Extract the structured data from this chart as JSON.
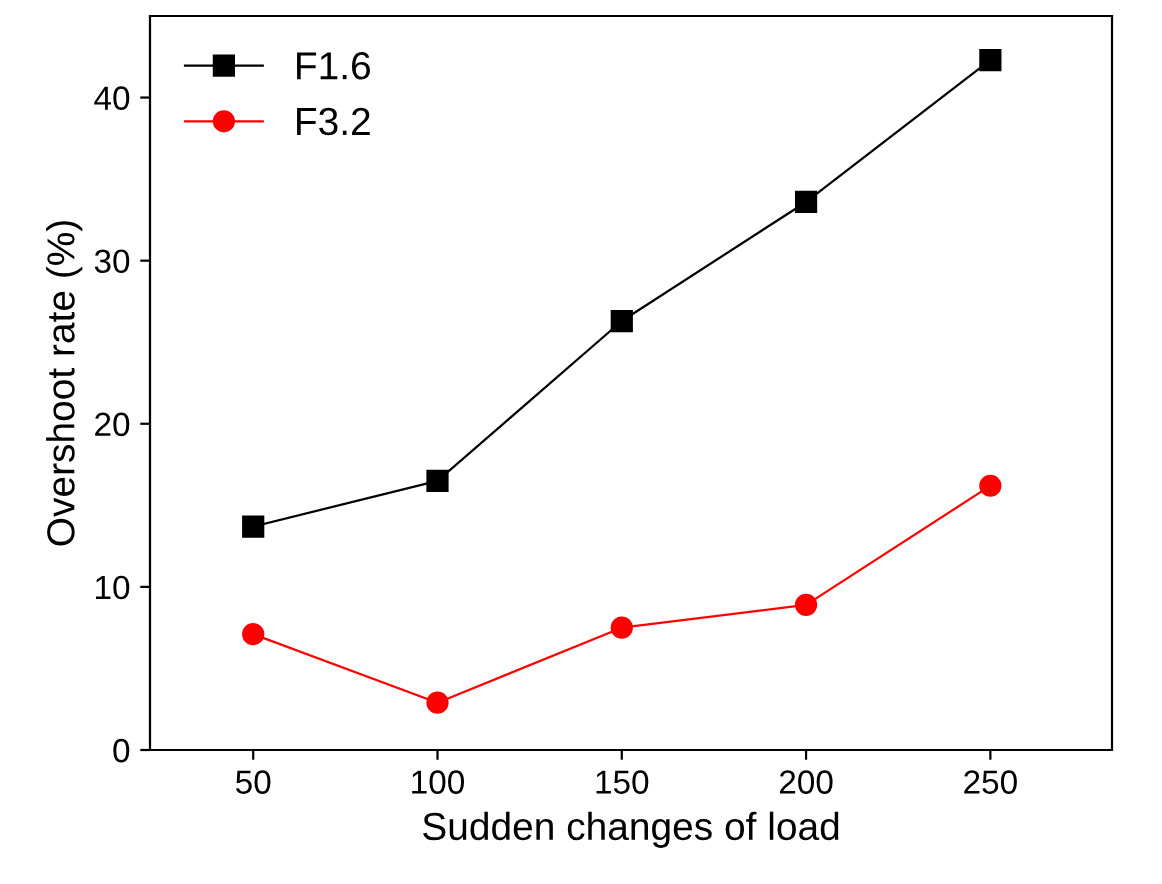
{
  "chart_data": {
    "type": "line",
    "xlabel": "Sudden changes of load",
    "ylabel": "Overshoot rate (%)",
    "x": [
      50,
      100,
      150,
      200,
      250
    ],
    "xlim": [
      22,
      283
    ],
    "xticks": [
      50,
      100,
      150,
      200,
      250
    ],
    "ylim": [
      0,
      45
    ],
    "yticks": [
      0,
      10,
      20,
      30,
      40
    ],
    "series": [
      {
        "name": "F1.6",
        "color": "#000000",
        "marker": "square",
        "values": [
          13.7,
          16.5,
          26.3,
          33.6,
          42.3
        ]
      },
      {
        "name": "F3.2",
        "color": "#ff0000",
        "marker": "circle",
        "values": [
          7.1,
          2.9,
          7.5,
          8.9,
          16.2
        ]
      }
    ],
    "legend": "top left",
    "grid": false,
    "line_style": "solid"
  }
}
